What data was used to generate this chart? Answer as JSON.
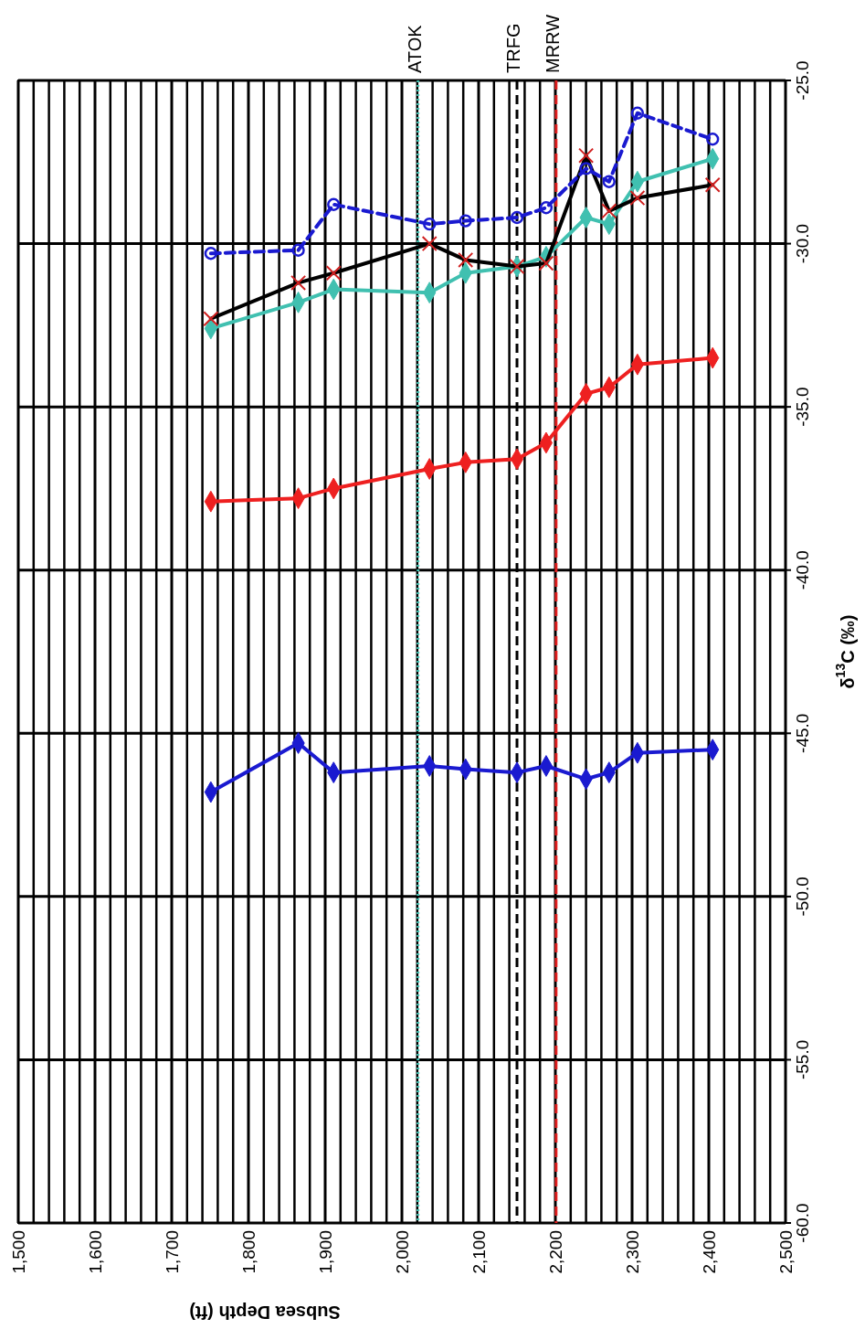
{
  "chart_data": {
    "type": "line",
    "xlabel": "Subsea Depth (ft)",
    "ylabel": "δ$^{13}$C (‰)",
    "x": [
      1751,
      1865,
      1911,
      2036,
      2083,
      2150,
      2188,
      2240,
      2270,
      2307,
      2405
    ],
    "xlim": [
      1500,
      2500
    ],
    "xticks": [
      {
        "value": 1500,
        "label": "1,500"
      },
      {
        "value": 1520,
        "label": null
      },
      {
        "value": 1540,
        "label": null
      },
      {
        "value": 1560,
        "label": null
      },
      {
        "value": 1580,
        "label": null
      },
      {
        "value": 1600,
        "label": "1,600"
      },
      {
        "value": 1620,
        "label": null
      },
      {
        "value": 1640,
        "label": null
      },
      {
        "value": 1660,
        "label": null
      },
      {
        "value": 1680,
        "label": null
      },
      {
        "value": 1700,
        "label": "1,700"
      },
      {
        "value": 1720,
        "label": null
      },
      {
        "value": 1740,
        "label": null
      },
      {
        "value": 1760,
        "label": null
      },
      {
        "value": 1780,
        "label": null
      },
      {
        "value": 1800,
        "label": "1,800"
      },
      {
        "value": 1820,
        "label": null
      },
      {
        "value": 1840,
        "label": null
      },
      {
        "value": 1860,
        "label": null
      },
      {
        "value": 1880,
        "label": null
      },
      {
        "value": 1900,
        "label": "1,900"
      },
      {
        "value": 1920,
        "label": null
      },
      {
        "value": 1940,
        "label": null
      },
      {
        "value": 1960,
        "label": null
      },
      {
        "value": 1980,
        "label": null
      },
      {
        "value": 2000,
        "label": "2,000"
      },
      {
        "value": 2020,
        "label": null
      },
      {
        "value": 2040,
        "label": null
      },
      {
        "value": 2060,
        "label": null
      },
      {
        "value": 2080,
        "label": null
      },
      {
        "value": 2100,
        "label": "2,100"
      },
      {
        "value": 2120,
        "label": null
      },
      {
        "value": 2140,
        "label": null
      },
      {
        "value": 2160,
        "label": null
      },
      {
        "value": 2180,
        "label": null
      },
      {
        "value": 2200,
        "label": "2,200"
      },
      {
        "value": 2220,
        "label": null
      },
      {
        "value": 2240,
        "label": null
      },
      {
        "value": 2260,
        "label": null
      },
      {
        "value": 2280,
        "label": null
      },
      {
        "value": 2300,
        "label": "2,300"
      },
      {
        "value": 2320,
        "label": null
      },
      {
        "value": 2340,
        "label": null
      },
      {
        "value": 2360,
        "label": null
      },
      {
        "value": 2380,
        "label": null
      },
      {
        "value": 2400,
        "label": "2,400"
      },
      {
        "value": 2420,
        "label": null
      },
      {
        "value": 2440,
        "label": null
      },
      {
        "value": 2460,
        "label": null
      },
      {
        "value": 2480,
        "label": null
      },
      {
        "value": 2500,
        "label": "2,500"
      }
    ],
    "ylim": [
      -60,
      -25
    ],
    "yticks": [
      {
        "value": -60,
        "label": "-60.0"
      },
      {
        "value": -55,
        "label": "-55.0"
      },
      {
        "value": -50,
        "label": "-50.0"
      },
      {
        "value": -45,
        "label": "-45.0"
      },
      {
        "value": -40,
        "label": "-40.0"
      },
      {
        "value": -35,
        "label": "-35.0"
      },
      {
        "value": -30,
        "label": "-30.0"
      },
      {
        "value": -25,
        "label": "-25.0"
      }
    ],
    "grid": true,
    "ref_lines": [
      {
        "axis": "x",
        "value": 2021,
        "label": "ATOK",
        "color": "#40c0b0",
        "line_style": "dotted"
      },
      {
        "axis": "x",
        "value": 2150,
        "label": "TRFG",
        "color": "#000000",
        "line_style": "dashed"
      },
      {
        "axis": "x",
        "value": 2201,
        "label": "MRRW",
        "color": "#e02020",
        "line_style": "dashed"
      }
    ],
    "series": [
      {
        "color": "#1a1ad0",
        "marker": "diamond",
        "line_style": "solid",
        "values": [
          -46.8,
          -45.3,
          -46.2,
          -46.0,
          -46.1,
          -46.2,
          -46.0,
          -46.4,
          -46.2,
          -45.6,
          -45.5
        ]
      },
      {
        "color": "#ee2020",
        "marker": "diamond",
        "line_style": "solid",
        "values": [
          -37.9,
          -37.8,
          -37.5,
          -36.9,
          -36.7,
          -36.6,
          -36.1,
          -34.6,
          -34.4,
          -33.7,
          -33.5
        ]
      },
      {
        "color": "#40c0b0",
        "marker": "diamond",
        "line_style": "solid",
        "values": [
          -32.6,
          -31.8,
          -31.4,
          -31.5,
          -30.9,
          -30.7,
          -30.4,
          -29.2,
          -29.4,
          -28.1,
          -27.4
        ]
      },
      {
        "color": "#000000",
        "marker": "cross",
        "line_style": "solid",
        "values": [
          -32.3,
          -31.2,
          -30.9,
          -30.0,
          -30.5,
          -30.7,
          -30.6,
          -27.3,
          -29.0,
          -28.6,
          -28.2
        ]
      },
      {
        "color": "#1a1ad0",
        "marker": "circle",
        "line_style": "dashed",
        "values": [
          -30.3,
          -30.2,
          -28.8,
          -29.4,
          -29.3,
          -29.2,
          -28.9,
          -27.7,
          -28.1,
          -26.0,
          -26.8
        ]
      }
    ]
  }
}
